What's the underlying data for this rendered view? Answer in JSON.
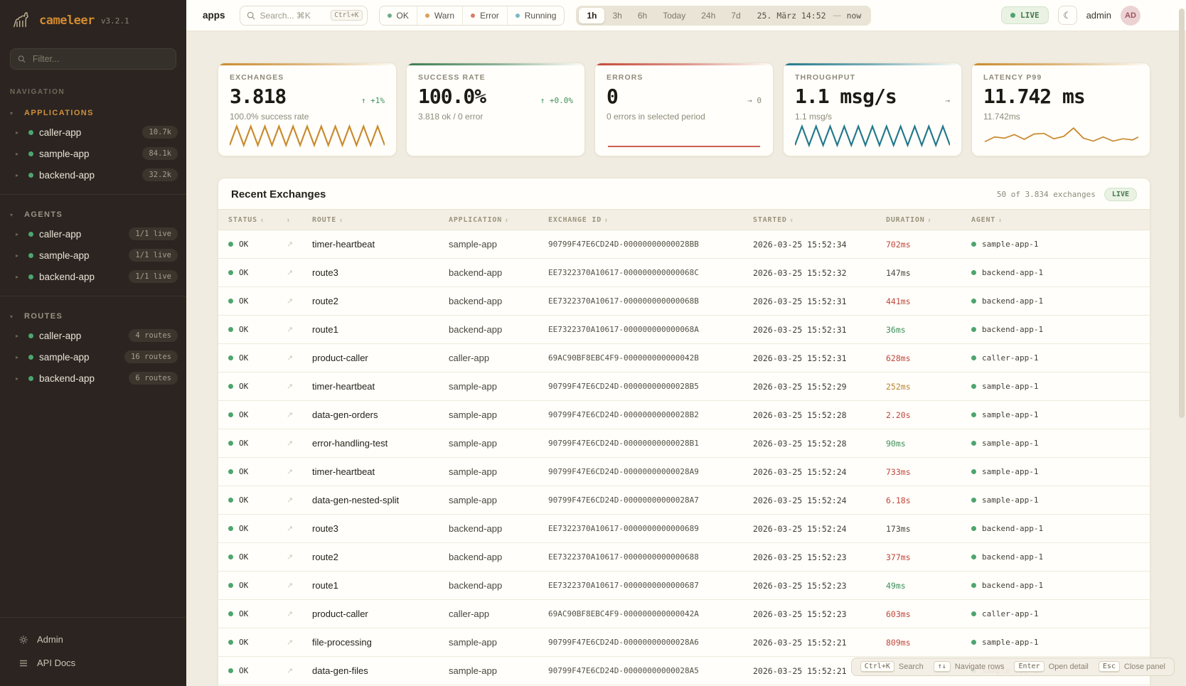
{
  "brand": {
    "name": "cameleer",
    "version": "v3.2.1"
  },
  "sidebar": {
    "filter_placeholder": "Filter...",
    "nav_label": "NAVIGATION",
    "sections": [
      {
        "label": "APPLICATIONS",
        "active": true,
        "items": [
          {
            "name": "caller-app",
            "badge": "10.7k"
          },
          {
            "name": "sample-app",
            "badge": "84.1k"
          },
          {
            "name": "backend-app",
            "badge": "32.2k"
          }
        ]
      },
      {
        "label": "AGENTS",
        "active": false,
        "items": [
          {
            "name": "caller-app",
            "badge": "1/1 live"
          },
          {
            "name": "sample-app",
            "badge": "1/1 live"
          },
          {
            "name": "backend-app",
            "badge": "1/1 live"
          }
        ]
      },
      {
        "label": "ROUTES",
        "active": false,
        "items": [
          {
            "name": "caller-app",
            "badge": "4 routes"
          },
          {
            "name": "sample-app",
            "badge": "16 routes"
          },
          {
            "name": "backend-app",
            "badge": "6 routes"
          }
        ]
      }
    ],
    "footer": [
      {
        "label": "Admin",
        "icon": "gear"
      },
      {
        "label": "API Docs",
        "icon": "list"
      }
    ]
  },
  "topbar": {
    "app_label": "apps",
    "search_placeholder": "Search... ⌘K",
    "search_kbd": "Ctrl+K",
    "status_filters": [
      {
        "label": "OK",
        "color": "#6fae87"
      },
      {
        "label": "Warn",
        "color": "#d9a05b"
      },
      {
        "label": "Error",
        "color": "#d97b6c"
      },
      {
        "label": "Running",
        "color": "#7bb8c4"
      }
    ],
    "time_ranges": [
      "1h",
      "3h",
      "6h",
      "Today",
      "24h",
      "7d"
    ],
    "active_range": "1h",
    "date_label": "25. März 14:52",
    "date_separator": "—",
    "date_end": "now",
    "live_label": "LIVE",
    "user": "admin",
    "avatar": "AD"
  },
  "cards": [
    {
      "label": "EXCHANGES",
      "value": "3.818",
      "delta": "↑ +1%",
      "delta_color": "green",
      "subtitle": "100.0% success rate",
      "accent": "#c98a2e",
      "spark": "zigzag"
    },
    {
      "label": "SUCCESS RATE",
      "value": "100.0%",
      "delta": "↑ +0.0%",
      "delta_color": "green",
      "subtitle": "3.818 ok / 0 error",
      "accent": "#3c7d52",
      "spark": "none"
    },
    {
      "label": "ERRORS",
      "value": "0",
      "delta": "→ 0",
      "delta_color": "gray",
      "subtitle": "0 errors in selected period",
      "accent": "#c4493a",
      "spark": "flat"
    },
    {
      "label": "THROUGHPUT",
      "value": "1.1 msg/s",
      "delta": "→",
      "delta_color": "gray",
      "subtitle": "1.1 msg/s",
      "accent": "#22788c",
      "spark": "zigzag"
    },
    {
      "label": "LATENCY P99",
      "value": "11.742 ms",
      "delta": "",
      "delta_color": "gray",
      "subtitle": "11.742ms",
      "accent": "#c98a2e",
      "spark": "line"
    }
  ],
  "table": {
    "title": "Recent Exchanges",
    "summary": "50 of 3.834 exchanges",
    "live_label": "LIVE",
    "columns": [
      "STATUS",
      "",
      "ROUTE",
      "APPLICATION",
      "EXCHANGE ID",
      "STARTED",
      "DURATION",
      "AGENT"
    ],
    "rows": [
      {
        "status": "OK",
        "route": "timer-heartbeat",
        "application": "sample-app",
        "exchange_id": "90799F47E6CD24D-00000000000028BB",
        "started": "2026-03-25 15:52:34",
        "duration": "702ms",
        "duration_color": "red",
        "agent": "sample-app-1"
      },
      {
        "status": "OK",
        "route": "route3",
        "application": "backend-app",
        "exchange_id": "EE7322370A10617-000000000000068C",
        "started": "2026-03-25 15:52:32",
        "duration": "147ms",
        "duration_color": "default",
        "agent": "backend-app-1"
      },
      {
        "status": "OK",
        "route": "route2",
        "application": "backend-app",
        "exchange_id": "EE7322370A10617-000000000000068B",
        "started": "2026-03-25 15:52:31",
        "duration": "441ms",
        "duration_color": "red",
        "agent": "backend-app-1"
      },
      {
        "status": "OK",
        "route": "route1",
        "application": "backend-app",
        "exchange_id": "EE7322370A10617-000000000000068A",
        "started": "2026-03-25 15:52:31",
        "duration": "36ms",
        "duration_color": "green",
        "agent": "backend-app-1"
      },
      {
        "status": "OK",
        "route": "product-caller",
        "application": "caller-app",
        "exchange_id": "69AC90BF8EBC4F9-000000000000042B",
        "started": "2026-03-25 15:52:31",
        "duration": "628ms",
        "duration_color": "red",
        "agent": "caller-app-1"
      },
      {
        "status": "OK",
        "route": "timer-heartbeat",
        "application": "sample-app",
        "exchange_id": "90799F47E6CD24D-00000000000028B5",
        "started": "2026-03-25 15:52:29",
        "duration": "252ms",
        "duration_color": "amber",
        "agent": "sample-app-1"
      },
      {
        "status": "OK",
        "route": "data-gen-orders",
        "application": "sample-app",
        "exchange_id": "90799F47E6CD24D-00000000000028B2",
        "started": "2026-03-25 15:52:28",
        "duration": "2.20s",
        "duration_color": "red",
        "agent": "sample-app-1"
      },
      {
        "status": "OK",
        "route": "error-handling-test",
        "application": "sample-app",
        "exchange_id": "90799F47E6CD24D-00000000000028B1",
        "started": "2026-03-25 15:52:28",
        "duration": "90ms",
        "duration_color": "green",
        "agent": "sample-app-1"
      },
      {
        "status": "OK",
        "route": "timer-heartbeat",
        "application": "sample-app",
        "exchange_id": "90799F47E6CD24D-00000000000028A9",
        "started": "2026-03-25 15:52:24",
        "duration": "733ms",
        "duration_color": "red",
        "agent": "sample-app-1"
      },
      {
        "status": "OK",
        "route": "data-gen-nested-split",
        "application": "sample-app",
        "exchange_id": "90799F47E6CD24D-00000000000028A7",
        "started": "2026-03-25 15:52:24",
        "duration": "6.18s",
        "duration_color": "red",
        "agent": "sample-app-1"
      },
      {
        "status": "OK",
        "route": "route3",
        "application": "backend-app",
        "exchange_id": "EE7322370A10617-0000000000000689",
        "started": "2026-03-25 15:52:24",
        "duration": "173ms",
        "duration_color": "default",
        "agent": "backend-app-1"
      },
      {
        "status": "OK",
        "route": "route2",
        "application": "backend-app",
        "exchange_id": "EE7322370A10617-0000000000000688",
        "started": "2026-03-25 15:52:23",
        "duration": "377ms",
        "duration_color": "red",
        "agent": "backend-app-1"
      },
      {
        "status": "OK",
        "route": "route1",
        "application": "backend-app",
        "exchange_id": "EE7322370A10617-0000000000000687",
        "started": "2026-03-25 15:52:23",
        "duration": "49ms",
        "duration_color": "green",
        "agent": "backend-app-1"
      },
      {
        "status": "OK",
        "route": "product-caller",
        "application": "caller-app",
        "exchange_id": "69AC90BF8EBC4F9-000000000000042A",
        "started": "2026-03-25 15:52:23",
        "duration": "603ms",
        "duration_color": "red",
        "agent": "caller-app-1"
      },
      {
        "status": "OK",
        "route": "file-processing",
        "application": "sample-app",
        "exchange_id": "90799F47E6CD24D-00000000000028A6",
        "started": "2026-03-25 15:52:21",
        "duration": "809ms",
        "duration_color": "red",
        "agent": "sample-app-1"
      },
      {
        "status": "OK",
        "route": "data-gen-files",
        "application": "sample-app",
        "exchange_id": "90799F47E6CD24D-00000000000028A5",
        "started": "2026-03-25 15:52:21",
        "duration": "",
        "duration_color": "default",
        "agent": "sample-app-1"
      }
    ]
  },
  "hints": [
    {
      "key": "Ctrl+K",
      "label": "Search"
    },
    {
      "key": "↑↓",
      "label": "Navigate rows"
    },
    {
      "key": "Enter",
      "label": "Open detail"
    },
    {
      "key": "Esc",
      "label": "Close panel"
    }
  ],
  "colors": {
    "status_ok_dot": "#4da56d",
    "duration_red": "#c0473b",
    "duration_amber": "#bc8430",
    "duration_green": "#3f8f5c",
    "duration_default": "#4a463c"
  }
}
